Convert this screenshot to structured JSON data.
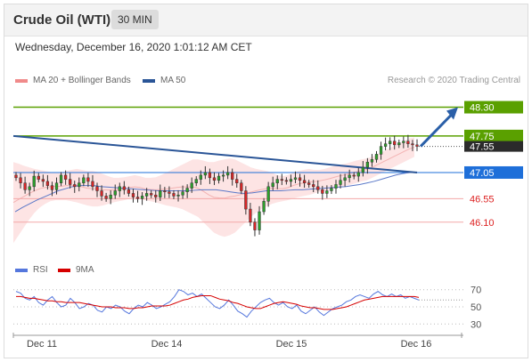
{
  "header": {
    "title": "Crude Oil (WTI)",
    "timeframe": "30 MIN"
  },
  "timestamp": "Wednesday, December 16, 2020 1:01:12 AM CET",
  "credit": "Research © 2020 Trading Central",
  "legend": {
    "ma20": "MA 20 + Bollinger Bands",
    "ma50": "MA 50"
  },
  "sub_legend": {
    "rsi": "RSI",
    "ma9": "9MA"
  },
  "colors": {
    "green": "#5aa000",
    "blue_level": "#1e6fd9",
    "red_level": "#d9534f",
    "trend": "#2a5597",
    "bollinger": "#fde4e4",
    "up": "#2ca02c",
    "down": "#d62728",
    "rsi": "#5577dd",
    "ma9": "#d60000",
    "price_tag": "#2b2b2b"
  },
  "chart_data": [
    {
      "type": "candlestick",
      "x_ticks": [
        "Dec 11",
        "Dec 14",
        "Dec 15",
        "Dec 16"
      ],
      "ylim": [
        45.5,
        48.65
      ],
      "levels": [
        {
          "value": 48.3,
          "label": "48.30",
          "kind": "target"
        },
        {
          "value": 47.75,
          "label": "47.75",
          "kind": "resistance"
        },
        {
          "value": 47.55,
          "label": "47.55",
          "kind": "last"
        },
        {
          "value": 47.05,
          "label": "47.05",
          "kind": "pivot"
        },
        {
          "value": 46.55,
          "label": "46.55",
          "kind": "support"
        },
        {
          "value": 46.1,
          "label": "46.10",
          "kind": "support"
        }
      ],
      "close_path": [
        46.95,
        46.85,
        46.72,
        46.78,
        46.98,
        46.92,
        46.88,
        46.8,
        46.72,
        46.85,
        47.0,
        46.92,
        46.82,
        46.78,
        46.85,
        46.95,
        46.88,
        46.78,
        46.7,
        46.6,
        46.55,
        46.62,
        46.7,
        46.78,
        46.72,
        46.65,
        46.58,
        46.55,
        46.6,
        46.65,
        46.62,
        46.58,
        46.7,
        46.68,
        46.65,
        46.6,
        46.62,
        46.68,
        46.75,
        46.85,
        46.92,
        47.0,
        47.05,
        46.95,
        46.9,
        46.98,
        47.0,
        47.05,
        46.92,
        46.85,
        46.7,
        46.35,
        46.1,
        45.95,
        46.3,
        46.5,
        46.78,
        46.85,
        46.92,
        46.9,
        46.88,
        46.92,
        46.95,
        46.9,
        46.85,
        46.82,
        46.78,
        46.72,
        46.65,
        46.7,
        46.75,
        46.82,
        46.9,
        46.95,
        47.0,
        46.98,
        47.05,
        47.15,
        47.25,
        47.3,
        47.4,
        47.55,
        47.6,
        47.65,
        47.58,
        47.62,
        47.65,
        47.6,
        47.58,
        47.55
      ],
      "bollinger_upper": [
        47.25,
        47.22,
        47.18,
        47.15,
        47.12,
        47.1,
        47.08,
        47.06,
        47.05,
        47.05,
        47.08,
        47.1,
        47.12,
        47.1,
        47.08,
        47.08,
        47.06,
        47.02,
        46.98,
        46.95,
        46.95,
        46.96,
        46.98,
        47.0,
        46.98,
        46.95,
        46.95,
        46.96,
        47.0,
        47.05,
        47.1,
        47.15,
        47.2,
        47.25,
        47.3,
        47.3,
        47.28,
        47.25,
        47.25,
        47.28,
        47.3,
        47.32,
        47.3,
        47.25,
        47.2,
        47.15,
        47.12,
        47.1,
        47.08,
        47.05,
        47.0,
        46.98,
        47.0,
        47.05,
        47.08,
        47.1,
        47.12,
        47.1,
        47.1,
        47.12,
        47.15,
        47.18,
        47.2,
        47.22,
        47.25,
        47.28,
        47.3,
        47.32,
        47.35,
        47.4,
        47.45,
        47.5,
        47.55,
        47.6,
        47.65,
        47.7,
        47.72
      ],
      "bollinger_lower": [
        45.7,
        45.85,
        46.0,
        46.15,
        46.28,
        46.38,
        46.45,
        46.5,
        46.52,
        46.52,
        46.52,
        46.5,
        46.48,
        46.45,
        46.42,
        46.4,
        46.4,
        46.42,
        46.45,
        46.48,
        46.5,
        46.52,
        46.55,
        46.55,
        46.55,
        46.52,
        46.5,
        46.48,
        46.45,
        46.42,
        46.4,
        46.38,
        46.35,
        46.3,
        46.25,
        46.2,
        46.1,
        46.0,
        45.9,
        45.85,
        45.82,
        45.85,
        45.9,
        46.0,
        46.1,
        46.2,
        46.28,
        46.35,
        46.4,
        46.45,
        46.48,
        46.5,
        46.52,
        46.55,
        46.58,
        46.6,
        46.62,
        46.65,
        46.68,
        46.7,
        46.72,
        46.75,
        46.78,
        46.8,
        46.82,
        46.85,
        46.88,
        46.9,
        46.95,
        47.0,
        47.05,
        47.1,
        47.15,
        47.2,
        47.25,
        47.3,
        47.35
      ],
      "ma50": [
        46.3,
        46.38,
        46.45,
        46.52,
        46.58,
        46.64,
        46.7,
        46.74,
        46.78,
        46.8,
        46.8,
        46.8,
        46.78,
        46.77,
        46.76,
        46.75,
        46.74,
        46.73,
        46.72,
        46.71,
        46.7,
        46.7,
        46.7,
        46.7,
        46.7,
        46.71,
        46.72,
        46.72,
        46.72,
        46.7,
        46.68,
        46.66,
        46.65,
        46.66,
        46.68,
        46.7,
        46.7,
        46.7,
        46.71,
        46.72,
        46.72,
        46.73,
        46.74,
        46.75,
        46.76,
        46.77,
        46.78,
        46.8,
        46.82,
        46.85,
        46.88,
        46.92,
        46.96,
        47.0,
        47.03,
        47.05,
        47.06
      ]
    },
    {
      "type": "line",
      "name": "RSI",
      "yticks": [
        70,
        50,
        30
      ],
      "ylim": [
        22,
        78
      ],
      "series": [
        {
          "name": "RSI",
          "values": [
            68,
            66,
            60,
            58,
            62,
            55,
            52,
            58,
            62,
            55,
            50,
            52,
            60,
            55,
            48,
            50,
            54,
            52,
            46,
            44,
            50,
            48,
            52,
            50,
            45,
            42,
            48,
            52,
            50,
            55,
            52,
            48,
            50,
            53,
            56,
            62,
            70,
            68,
            64,
            66,
            62,
            65,
            60,
            55,
            50,
            48,
            52,
            58,
            52,
            45,
            42,
            38,
            45,
            50,
            55,
            58,
            60,
            55,
            52,
            55,
            50,
            48,
            52,
            45,
            42,
            46,
            50,
            44,
            40,
            44,
            48,
            50,
            52,
            56,
            58,
            62,
            64,
            62,
            60,
            65,
            68,
            64,
            62,
            65,
            62,
            64,
            60,
            62,
            60,
            58
          ]
        },
        {
          "name": "9MA",
          "values": [
            62,
            62,
            61,
            60,
            60,
            59,
            58,
            57,
            57,
            56,
            56,
            55,
            55,
            55,
            55,
            54,
            53,
            52,
            51,
            50,
            50,
            50,
            49,
            49,
            49,
            48,
            48,
            49,
            49,
            50,
            51,
            51,
            51,
            51,
            52,
            54,
            56,
            58,
            59,
            61,
            62,
            63,
            63,
            63,
            61,
            59,
            58,
            57,
            55,
            54,
            52,
            50,
            49,
            48,
            48,
            50,
            52,
            54,
            55,
            56,
            55,
            54,
            53,
            51,
            50,
            49,
            49,
            48,
            47,
            47,
            47,
            48,
            49,
            50,
            52,
            54,
            56,
            58,
            59,
            60,
            61,
            62,
            62,
            62,
            62,
            62,
            62,
            62,
            62,
            61
          ]
        }
      ]
    }
  ]
}
